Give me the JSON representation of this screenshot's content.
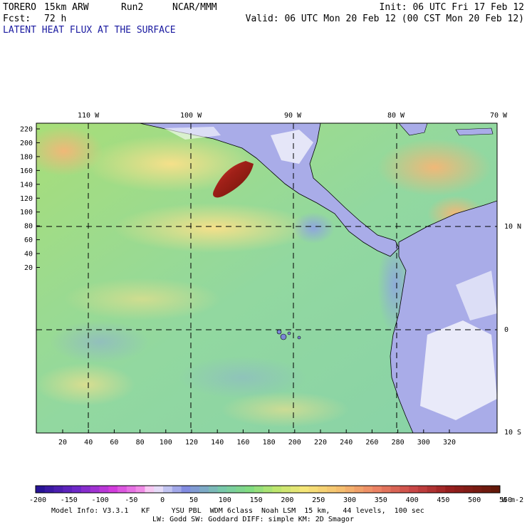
{
  "header": {
    "model": "TORERO",
    "resolution": "15km ARW",
    "run": "Run2",
    "org": "NCAR/MMM",
    "init": "Init: 06 UTC Fri 17 Feb 12",
    "fcst_label": "Fcst:",
    "fcst_hours": "72 h",
    "valid": "Valid: 06 UTC Mon 20 Feb 12 (00 CST Mon 20 Feb 12)",
    "field": "LATENT HEAT FLUX AT THE SURFACE"
  },
  "map": {
    "lon_labels": [
      "110 W",
      "100 W",
      "90 W",
      "80 W",
      "70 W"
    ],
    "lat_labels": [
      "10 N",
      "0",
      "10 S"
    ],
    "y_ticks": [
      "220",
      "200",
      "180",
      "160",
      "140",
      "120",
      "100",
      "80",
      "60",
      "40",
      "20"
    ],
    "x_ticks": [
      "20",
      "40",
      "60",
      "80",
      "100",
      "120",
      "140",
      "160",
      "180",
      "200",
      "220",
      "240",
      "260",
      "280",
      "300",
      "320"
    ]
  },
  "colorbar": {
    "labels": [
      "-200",
      "-150",
      "-100",
      "-50",
      "0",
      "50",
      "100",
      "150",
      "200",
      "250",
      "300",
      "350",
      "400",
      "450",
      "500",
      "550"
    ],
    "units": "W m-2"
  },
  "model_info": {
    "line1": "Model Info: V3.3.1   KF     YSU PBL  WDM 6class  Noah LSM  15 km,   44 levels,  100 sec",
    "line2": "LW: Godd SW: Goddard DIFF: simple KM: 2D Smagor"
  }
}
